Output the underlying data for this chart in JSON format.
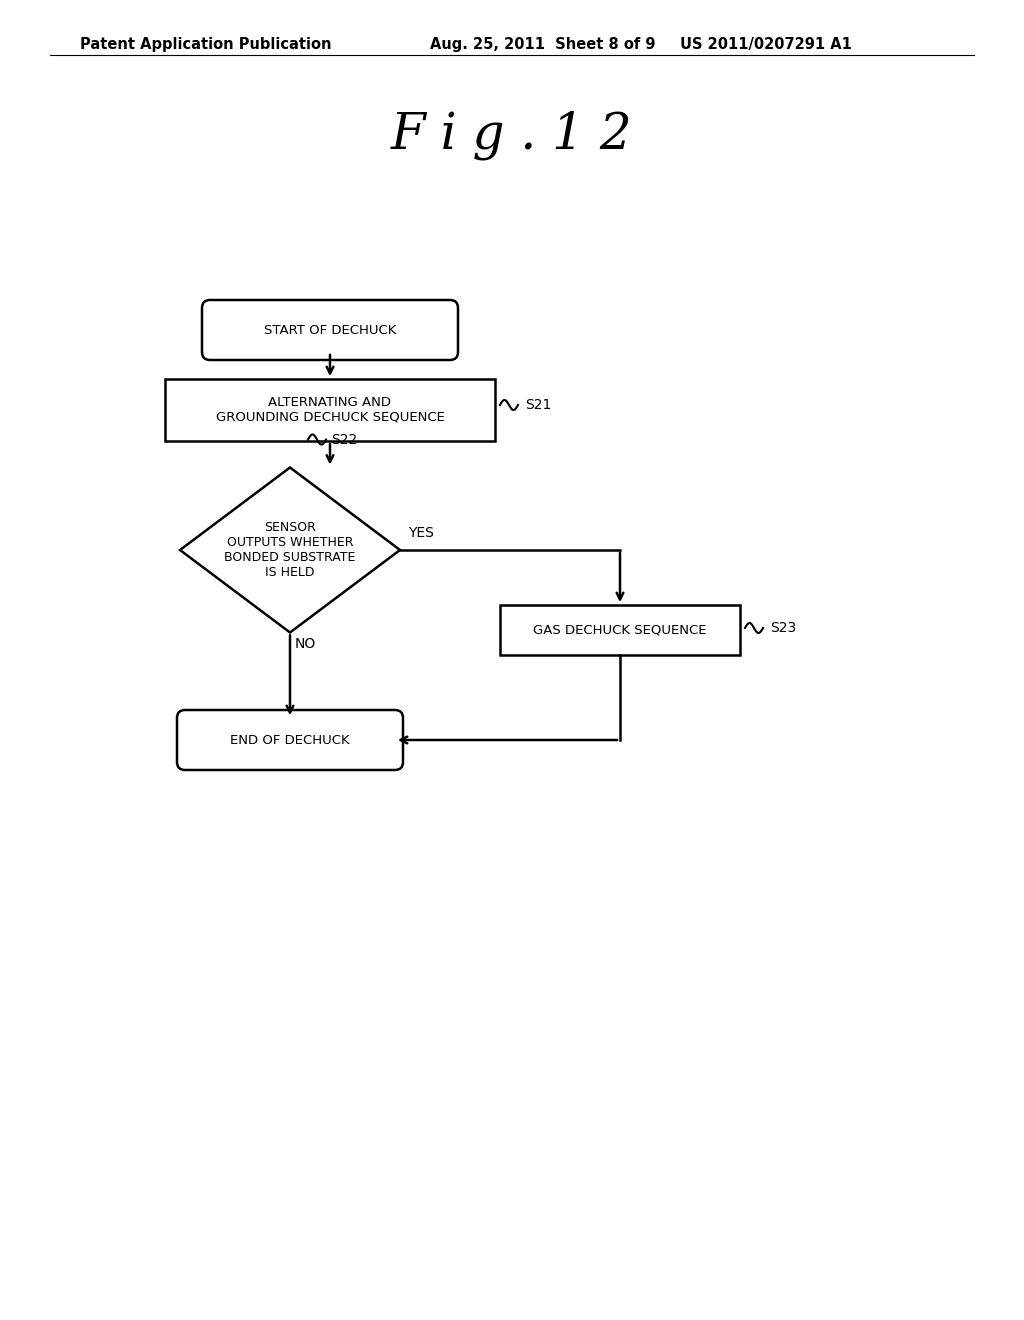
{
  "bg_color": "#ffffff",
  "header_left": "Patent Application Publication",
  "header_mid": "Aug. 25, 2011  Sheet 8 of 9",
  "header_right": "US 2011/0207291 A1",
  "fig_title": "F i g . 1 2",
  "start_text": "START OF DECHUCK",
  "s21_text": "ALTERNATING AND\nGROUNDING DECHUCK SEQUENCE",
  "s21_label": "S21",
  "s22_text": "SENSOR\nOUTPUTS WHETHER\nBONDED SUBSTRATE\nIS HELD",
  "s22_label": "S22",
  "s23_text": "GAS DECHUCK SEQUENCE",
  "s23_label": "S23",
  "end_text": "END OF DECHUCK",
  "yes_text": "YES",
  "no_text": "NO",
  "font_size_header": 10.5,
  "font_size_title": 36,
  "font_size_node": 9.5,
  "font_size_label": 10,
  "line_color": "#000000",
  "text_color": "#000000"
}
